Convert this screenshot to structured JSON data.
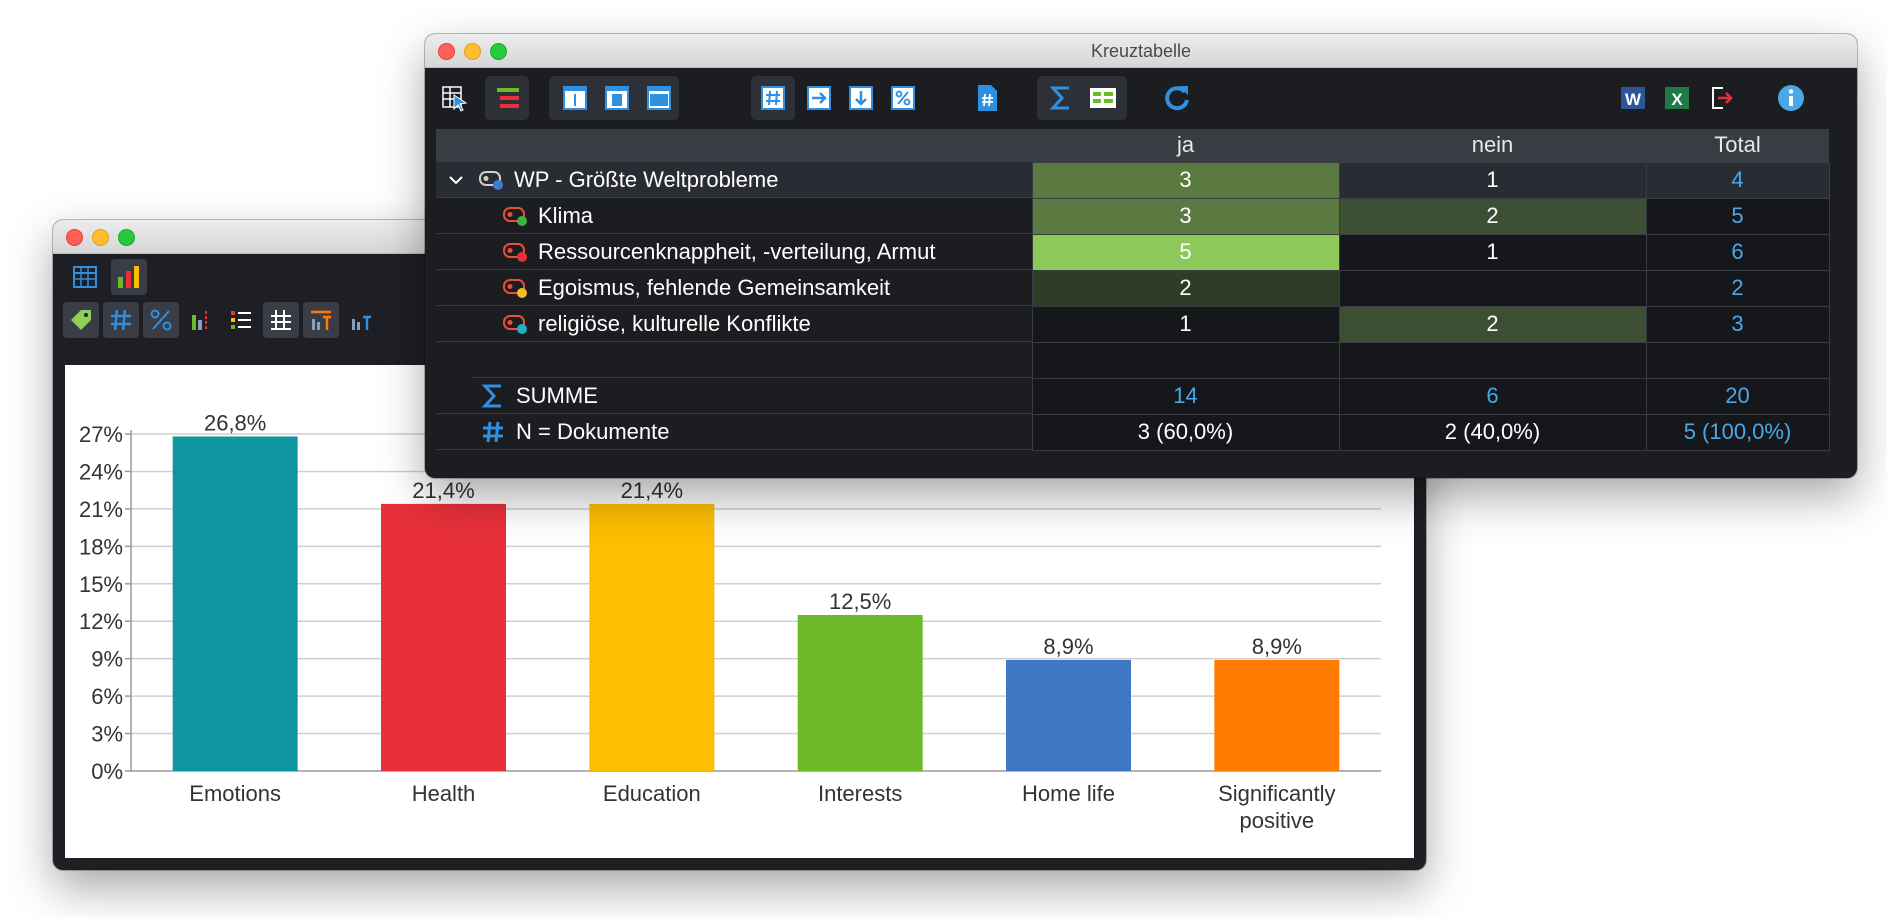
{
  "chart_window": {
    "chart_data": {
      "type": "bar",
      "categories": [
        "Emotions",
        "Health",
        "Education",
        "Interests",
        "Home life",
        "Significantly positive"
      ],
      "category_lines": [
        [
          "Emotions"
        ],
        [
          "Health"
        ],
        [
          "Education"
        ],
        [
          "Interests"
        ],
        [
          "Home life"
        ],
        [
          "Significantly",
          "positive"
        ]
      ],
      "values": [
        26.8,
        21.4,
        21.4,
        12.5,
        8.9,
        8.9
      ],
      "value_labels": [
        "26,8%",
        "21,4%",
        "21,4%",
        "12,5%",
        "8,9%",
        "8,9%"
      ],
      "colors": [
        "#0e97a0",
        "#e8303a",
        "#fdbe00",
        "#6cba27",
        "#3f77c4",
        "#ff7c00"
      ],
      "yticks": [
        0,
        3,
        6,
        9,
        12,
        15,
        18,
        21,
        24,
        27
      ],
      "ytick_labels": [
        "0%",
        "3%",
        "6%",
        "9%",
        "12%",
        "15%",
        "18%",
        "21%",
        "24%",
        "27%"
      ],
      "ylim": [
        0,
        27
      ],
      "grid": true
    }
  },
  "table_window": {
    "title": "Kreuztabelle",
    "columns": [
      "ja",
      "nein",
      "Total"
    ],
    "rows": [
      {
        "label": "WP - Größte Weltprobleme",
        "values": [
          "3",
          "1",
          "4"
        ],
        "level": 0,
        "dot": "#3a7fd5"
      },
      {
        "label": "Klima",
        "values": [
          "3",
          "2",
          "5"
        ],
        "level": 1,
        "dot": "#3fb33f"
      },
      {
        "label": "Ressourcenknappheit, -verteilung, Armut",
        "values": [
          "5",
          "1",
          "6"
        ],
        "level": 1,
        "dot": "#e8303a"
      },
      {
        "label": "Egoismus, fehlende Gemeinsamkeit",
        "values": [
          "2",
          "",
          "2"
        ],
        "level": 1,
        "dot": "#f0c020"
      },
      {
        "label": "religiöse, kulturelle Konflikte",
        "values": [
          "1",
          "2",
          "3"
        ],
        "level": 1,
        "dot": "#20b0c8"
      }
    ],
    "summe": {
      "label": "SUMME",
      "values": [
        "14",
        "6",
        "20"
      ]
    },
    "n_docs": {
      "label": "N = Dokumente",
      "values": [
        "3 (60,0%)",
        "2 (40,0%)",
        "5 (100,0%)"
      ]
    },
    "colors": {
      "accent": "#4aa8e8",
      "highlight_strong": "#8cc85a",
      "highlight_mid": "#5a7a42",
      "highlight_low": "#3d4f32"
    }
  }
}
